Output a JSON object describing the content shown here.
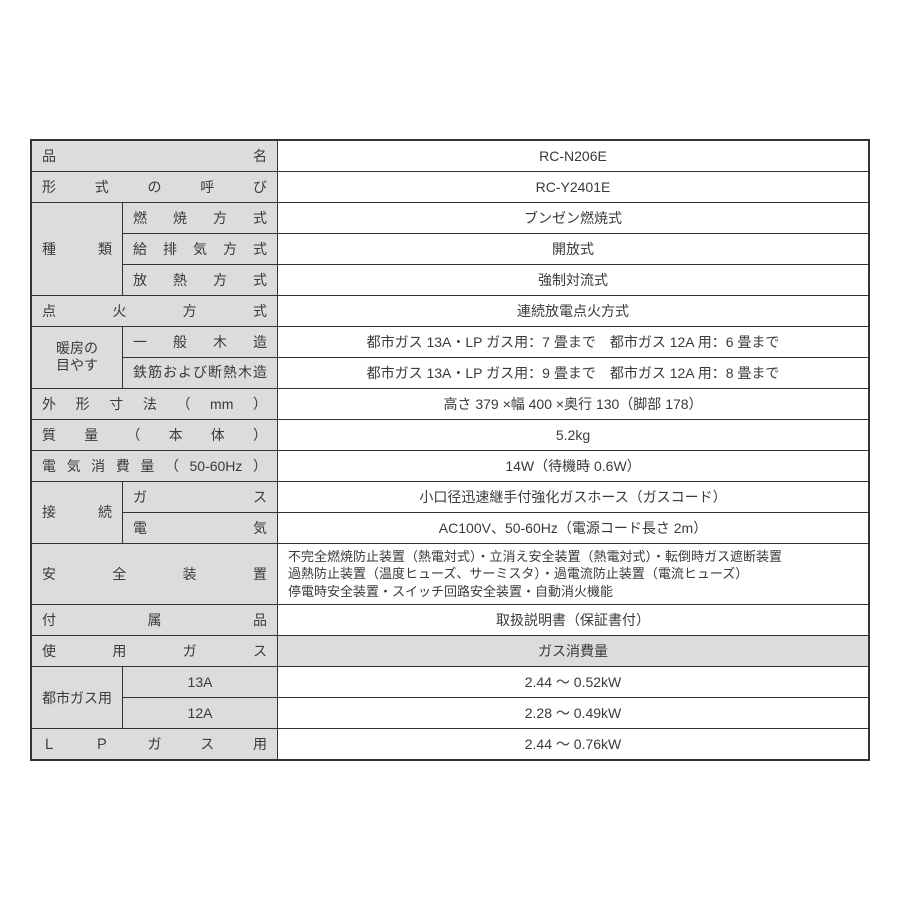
{
  "colors": {
    "label_bg": "#dcdcdc",
    "value_bg": "#ffffff",
    "border": "#333333",
    "text": "#3a3a3a"
  },
  "rows": {
    "product_name": {
      "label": "品名",
      "value": "RC-N206E"
    },
    "model_code": {
      "label": "形式の呼び",
      "value": "RC-Y2401E"
    },
    "type": {
      "label": "種類",
      "combustion": {
        "label": "燃焼方式",
        "value": "ブンゼン燃焼式"
      },
      "exhaust": {
        "label": "給排気方式",
        "value": "開放式"
      },
      "heat": {
        "label": "放熱方式",
        "value": "強制対流式"
      }
    },
    "ignition": {
      "label": "点火方式",
      "value": "連続放電点火方式"
    },
    "heating": {
      "label": "暖房の\n目やす",
      "wood": {
        "label": "一般木造",
        "value": "都市ガス 13A・LP ガス用：7 畳まで　都市ガス 12A 用：6 畳まで"
      },
      "concrete": {
        "label": "鉄筋および断熱木造",
        "value": "都市ガス 13A・LP ガス用：9 畳まで　都市ガス 12A 用：8 畳まで"
      }
    },
    "dimensions": {
      "label": "外形寸法（mm）",
      "value": "高さ 379 ×幅 400 ×奥行 130（脚部 178）"
    },
    "weight": {
      "label": "質量（本体）",
      "value": "5.2kg"
    },
    "power": {
      "label": "電気消費量（50-60Hz）",
      "value": "14W（待機時 0.6W）"
    },
    "connection": {
      "label": "接続",
      "gas": {
        "label": "ガス",
        "value": "小口径迅速継手付強化ガスホース（ガスコード）"
      },
      "elec": {
        "label": "電気",
        "value": "AC100V、50-60Hz（電源コード長さ 2m）"
      }
    },
    "safety": {
      "label": "安全装置",
      "value": "不完全燃焼防止装置（熱電対式）・立消え安全装置（熱電対式）・転倒時ガス遮断装置\n過熱防止装置（温度ヒューズ、サーミスタ）・過電流防止装置（電流ヒューズ）\n停電時安全装置・スイッチ回路安全装置・自動消火機能"
    },
    "accessories": {
      "label": "付属品",
      "value": "取扱説明書（保証書付）"
    },
    "gas_use": {
      "label": "使用ガス",
      "header": "ガス消費量",
      "city": {
        "label": "都市ガス用",
        "g13a": {
          "label": "13A",
          "value": "2.44 ～ 0.52kW"
        },
        "g12a": {
          "label": "12A",
          "value": "2.28 ～ 0.49kW"
        }
      },
      "lp": {
        "label": "ＬＰガス用",
        "value": "2.44 ～ 0.76kW"
      }
    }
  }
}
